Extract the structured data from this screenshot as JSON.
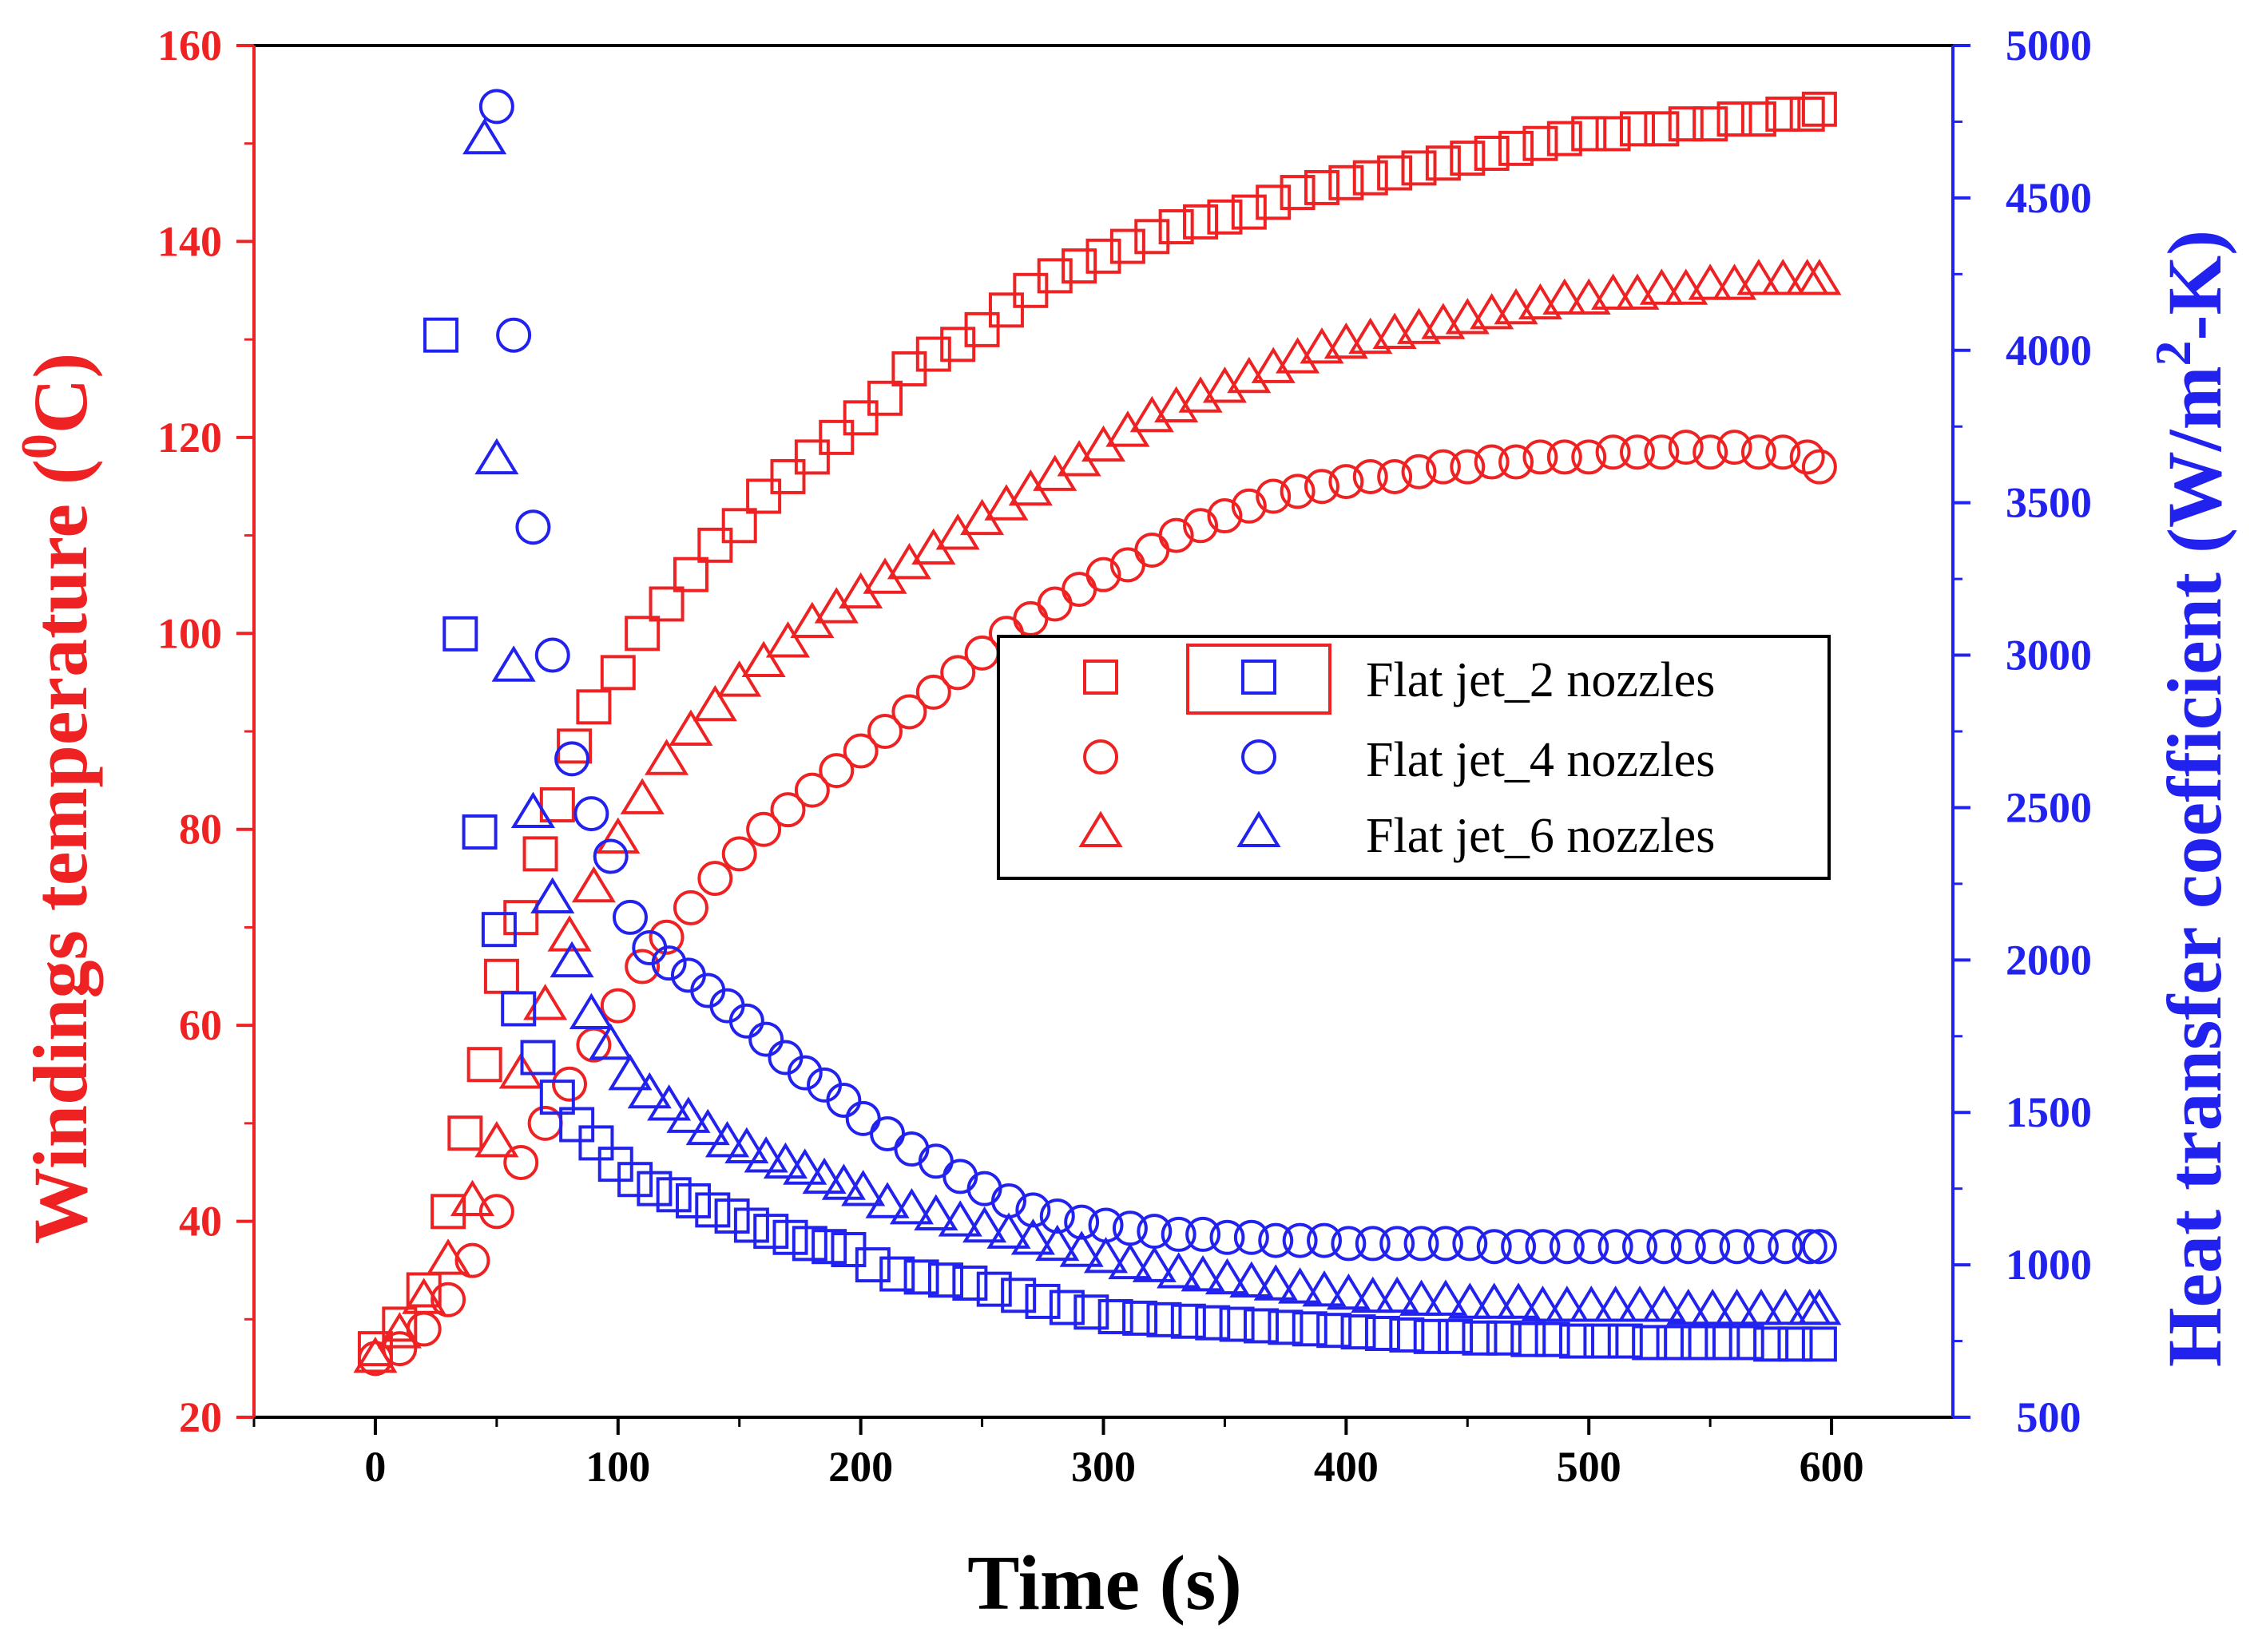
{
  "chart_data": {
    "type": "scatter",
    "title": "",
    "xlabel": "Time (s)",
    "ylabel_left": "Windings temperature (⁰C)",
    "ylabel_left_parts": [
      "Windings temperature (",
      "0",
      "C)"
    ],
    "ylabel_right": "Heat transfer coefficient (W/m²-K)",
    "ylabel_right_parts": [
      "Heat transfer coefficient (W/m",
      "2",
      "-K)"
    ],
    "xlim": [
      -50,
      650
    ],
    "ylim_left": [
      20,
      160
    ],
    "ylim_right": [
      500,
      5000
    ],
    "x_ticks": [
      "0",
      "100",
      "200",
      "300",
      "400",
      "500",
      "600"
    ],
    "y_left_ticks": [
      "20",
      "40",
      "60",
      "80",
      "100",
      "120",
      "140",
      "160"
    ],
    "y_right_ticks": [
      "500",
      "1000",
      "1500",
      "2000",
      "2500",
      "3000",
      "3500",
      "4000",
      "4500",
      "5000"
    ],
    "grid": false,
    "legend_position": "center-right",
    "legend": [
      {
        "label": "Flat jet_2 nozzles",
        "marker": "square"
      },
      {
        "label": "Flat jet_4 nozzles",
        "marker": "circle"
      },
      {
        "label": "Flat jet_6 nozzles",
        "marker": "triangle"
      }
    ],
    "colors": {
      "temperature": "#ee2222",
      "htc": "#2222ee",
      "axis": "#000000"
    },
    "series": [
      {
        "name": "Flat jet_2 nozzles (temperature)",
        "axis": "left",
        "marker": "square",
        "x": [
          0,
          10,
          20,
          30,
          37,
          45,
          52,
          60,
          68,
          75,
          82,
          90,
          100,
          110,
          120,
          130,
          140,
          150,
          160,
          170,
          180,
          190,
          200,
          210,
          220,
          230,
          240,
          250,
          260,
          270,
          280,
          290,
          300,
          310,
          320,
          330,
          340,
          350,
          360,
          370,
          380,
          390,
          400,
          410,
          420,
          430,
          440,
          450,
          460,
          470,
          480,
          490,
          500,
          510,
          520,
          530,
          540,
          550,
          560,
          570,
          580,
          590,
          595
        ],
        "y": [
          27,
          29.5,
          33,
          41,
          49,
          56,
          65,
          71,
          77.5,
          82.5,
          88.5,
          92.5,
          96,
          100,
          103,
          106,
          109,
          111,
          114,
          116,
          118,
          120,
          122,
          124,
          127,
          128.5,
          129.5,
          131,
          133,
          135,
          136.5,
          137.5,
          138.5,
          139.5,
          140.5,
          141.5,
          142,
          142.5,
          143,
          144,
          145,
          145.5,
          146,
          146.5,
          147,
          147.5,
          148,
          148.5,
          149,
          149.5,
          150,
          150.5,
          151,
          151,
          151.5,
          151.5,
          152,
          152,
          152.5,
          152.5,
          153,
          153,
          153.5
        ]
      },
      {
        "name": "Flat jet_4 nozzles (temperature)",
        "axis": "left",
        "marker": "circle",
        "x": [
          0,
          10,
          20,
          30,
          40,
          50,
          60,
          70,
          80,
          90,
          100,
          110,
          120,
          130,
          140,
          150,
          160,
          170,
          180,
          190,
          200,
          210,
          220,
          230,
          240,
          250,
          260,
          270,
          280,
          290,
          300,
          310,
          320,
          330,
          340,
          350,
          360,
          370,
          380,
          390,
          400,
          410,
          420,
          430,
          440,
          450,
          460,
          470,
          480,
          490,
          500,
          510,
          520,
          530,
          540,
          550,
          560,
          570,
          580,
          590,
          595
        ],
        "y": [
          26,
          27,
          29,
          32,
          36,
          41,
          46,
          50,
          54,
          58,
          62,
          66,
          69,
          72,
          75,
          77.5,
          80,
          82,
          84,
          86,
          88,
          90,
          92,
          94,
          96,
          98,
          100,
          101.5,
          103,
          104.5,
          106,
          107,
          108.5,
          110,
          111,
          112,
          113,
          114,
          114.5,
          115,
          115.5,
          116,
          116,
          116.5,
          117,
          117,
          117.5,
          117.5,
          118,
          118,
          118,
          118.5,
          118.5,
          118.5,
          119,
          118.5,
          119,
          118.5,
          118.5,
          118,
          117
        ]
      },
      {
        "name": "Flat jet_6 nozzles (temperature)",
        "axis": "left",
        "marker": "triangle",
        "x": [
          0,
          10,
          20,
          30,
          40,
          50,
          60,
          70,
          80,
          90,
          100,
          110,
          120,
          130,
          140,
          150,
          160,
          170,
          180,
          190,
          200,
          210,
          220,
          230,
          240,
          250,
          260,
          270,
          280,
          290,
          300,
          310,
          320,
          330,
          340,
          350,
          360,
          370,
          380,
          390,
          400,
          410,
          420,
          430,
          440,
          450,
          460,
          470,
          480,
          490,
          500,
          510,
          520,
          530,
          540,
          550,
          560,
          570,
          580,
          590,
          595
        ],
        "y": [
          26,
          28.5,
          32,
          36,
          42,
          48,
          55,
          62,
          69,
          74,
          79,
          83,
          87,
          90,
          92.5,
          95,
          97,
          99,
          101,
          102.5,
          104,
          105.5,
          107,
          108.5,
          110,
          111.5,
          113,
          114.5,
          116,
          117.5,
          119,
          120.5,
          122,
          123,
          124,
          125,
          126,
          127,
          128,
          129,
          129.5,
          130,
          130.5,
          131,
          131.5,
          132,
          132.5,
          133,
          133.5,
          134,
          134,
          134.5,
          134.5,
          135,
          135,
          135.5,
          135.5,
          136,
          136,
          136,
          136
        ]
      },
      {
        "name": "Flat jet_2 nozzles (HTC)",
        "axis": "right",
        "marker": "square",
        "x": [
          27,
          35,
          43,
          51,
          59,
          67,
          75,
          83,
          91,
          99,
          107,
          115,
          123,
          131,
          139,
          147,
          155,
          163,
          171,
          179,
          187,
          195,
          205,
          215,
          225,
          235,
          245,
          255,
          265,
          275,
          285,
          295,
          305,
          315,
          325,
          335,
          345,
          355,
          365,
          375,
          385,
          395,
          405,
          415,
          425,
          435,
          445,
          455,
          465,
          475,
          485,
          495,
          505,
          515,
          525,
          535,
          545,
          555,
          565,
          575,
          585,
          595
        ],
        "y": [
          4050,
          3070,
          2420,
          2100,
          1840,
          1680,
          1550,
          1460,
          1400,
          1330,
          1280,
          1250,
          1230,
          1210,
          1180,
          1160,
          1130,
          1110,
          1090,
          1070,
          1060,
          1050,
          1000,
          970,
          960,
          950,
          940,
          920,
          900,
          880,
          860,
          845,
          830,
          825,
          820,
          815,
          810,
          805,
          800,
          795,
          790,
          785,
          780,
          775,
          770,
          765,
          765,
          760,
          760,
          755,
          755,
          750,
          750,
          750,
          745,
          745,
          745,
          745,
          745,
          740,
          740,
          740
        ]
      },
      {
        "name": "Flat jet_4 nozzles (HTC)",
        "axis": "right",
        "marker": "circle",
        "x": [
          50,
          57,
          65,
          73,
          81,
          89,
          97,
          105,
          113,
          121,
          129,
          137,
          145,
          153,
          161,
          169,
          177,
          185,
          193,
          201,
          211,
          221,
          231,
          241,
          251,
          261,
          271,
          281,
          291,
          301,
          311,
          321,
          331,
          341,
          351,
          361,
          371,
          381,
          391,
          401,
          411,
          421,
          431,
          441,
          451,
          461,
          471,
          481,
          491,
          501,
          511,
          521,
          531,
          541,
          551,
          561,
          571,
          581,
          591,
          595
        ],
        "y": [
          4800,
          4050,
          3420,
          3000,
          2660,
          2480,
          2340,
          2140,
          2040,
          1990,
          1950,
          1900,
          1850,
          1800,
          1740,
          1680,
          1630,
          1590,
          1540,
          1480,
          1430,
          1380,
          1340,
          1290,
          1250,
          1210,
          1180,
          1160,
          1140,
          1130,
          1120,
          1110,
          1100,
          1100,
          1090,
          1090,
          1080,
          1080,
          1080,
          1070,
          1070,
          1070,
          1070,
          1070,
          1070,
          1060,
          1060,
          1060,
          1060,
          1060,
          1060,
          1060,
          1060,
          1060,
          1060,
          1060,
          1060,
          1060,
          1060,
          1060
        ]
      },
      {
        "name": "Flat jet_6 nozzles (HTC)",
        "axis": "right",
        "marker": "triangle",
        "x": [
          45,
          50,
          57,
          65,
          73,
          81,
          89,
          97,
          105,
          113,
          121,
          129,
          137,
          145,
          153,
          161,
          169,
          177,
          185,
          193,
          201,
          211,
          221,
          231,
          241,
          251,
          261,
          271,
          281,
          291,
          301,
          311,
          321,
          331,
          341,
          351,
          361,
          371,
          381,
          391,
          401,
          411,
          421,
          431,
          441,
          451,
          461,
          471,
          481,
          491,
          501,
          511,
          521,
          531,
          541,
          551,
          561,
          571,
          581,
          591,
          595
        ],
        "y": [
          4690,
          3640,
          2960,
          2480,
          2200,
          1990,
          1820,
          1720,
          1620,
          1560,
          1520,
          1480,
          1440,
          1400,
          1380,
          1350,
          1330,
          1310,
          1280,
          1260,
          1240,
          1200,
          1180,
          1160,
          1140,
          1120,
          1100,
          1080,
          1060,
          1040,
          1020,
          1000,
          990,
          970,
          960,
          950,
          940,
          930,
          920,
          910,
          900,
          890,
          890,
          880,
          880,
          870,
          870,
          870,
          860,
          860,
          860,
          860,
          860,
          860,
          850,
          850,
          850,
          850,
          850,
          850,
          850
        ]
      }
    ]
  }
}
